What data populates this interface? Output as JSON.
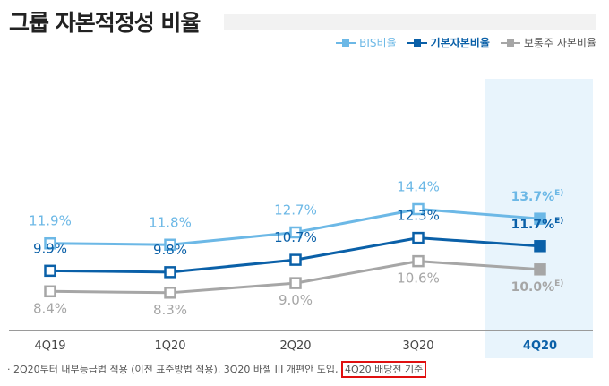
{
  "title": "그룹 자본적정성 비율",
  "footnote": {
    "prefix": "· 2Q20부터 내부등급법 적용 (이전 표준방법 적용), 3Q20 바젤 III 개편안 도입, ",
    "highlight": "4Q20 배당전 기준"
  },
  "colors": {
    "bis": "#6cb8e6",
    "basic": "#0a60a8",
    "common": "#a6a6a6",
    "highlight_bg": "#e8f4fc",
    "footnote_box": "#e01010"
  },
  "chart_data": {
    "type": "line",
    "categories": [
      "4Q19",
      "1Q20",
      "2Q20",
      "3Q20",
      "4Q20"
    ],
    "highlighted_category": "4Q20",
    "series": [
      {
        "name": "BIS비율",
        "key": "bis",
        "values": [
          11.9,
          11.8,
          12.7,
          14.4,
          13.7
        ],
        "labels": [
          "11.9%",
          "11.8%",
          "12.7%",
          "14.4%",
          "13.7%"
        ],
        "last_suffix": "E)"
      },
      {
        "name": "기본자본비율",
        "key": "basic",
        "values": [
          9.9,
          9.8,
          10.7,
          12.3,
          11.7
        ],
        "labels": [
          "9.9%",
          "9.8%",
          "10.7%",
          "12.3%",
          "11.7%"
        ],
        "last_suffix": "E)"
      },
      {
        "name": "보통주 자본비율",
        "key": "common",
        "values": [
          8.4,
          8.3,
          9.0,
          10.6,
          10.0
        ],
        "labels": [
          "8.4%",
          "8.3%",
          "9.0%",
          "10.6%",
          "10.0%"
        ],
        "last_suffix": "E)"
      }
    ],
    "legend_position": "top-right",
    "grid": false
  }
}
